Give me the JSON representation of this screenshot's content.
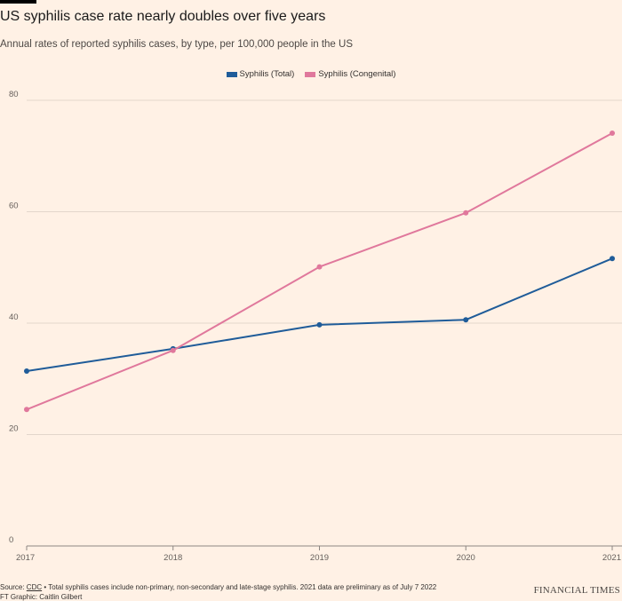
{
  "header": {
    "title": "US syphilis case rate nearly doubles over five years",
    "subtitle": "Annual rates of reported syphilis cases, by type, per 100,000 people in the US"
  },
  "footer": {
    "source_prefix": "Source: ",
    "source_link": "CDC",
    "source_note": " • Total syphilis cases include non-primary, non-secondary and late-stage syphilis. 2021 data are preliminary as of July 7 2022",
    "credit": "FT Graphic: Caitlin Gilbert",
    "brand": "FINANCIAL TIMES"
  },
  "chart_data": {
    "type": "line",
    "title": "US syphilis case rate nearly doubles over five years",
    "subtitle": "Annual rates of reported syphilis cases, by type, per 100,000 people in the US",
    "x": [
      "2017",
      "2018",
      "2019",
      "2020",
      "2021"
    ],
    "series": [
      {
        "name": "Syphilis (Total)",
        "color": "#1f5c99",
        "values": [
          31.4,
          35.4,
          39.7,
          40.6,
          51.6
        ]
      },
      {
        "name": "Syphilis (Congenital)",
        "color": "#e0789c",
        "values": [
          24.5,
          35.1,
          50.1,
          59.8,
          74.1
        ]
      }
    ],
    "yticks": [
      "0",
      "20",
      "40",
      "60",
      "80"
    ],
    "ylim": [
      0,
      80
    ],
    "xlabel": "",
    "ylabel": "",
    "grid": true,
    "legend": "top-center"
  }
}
